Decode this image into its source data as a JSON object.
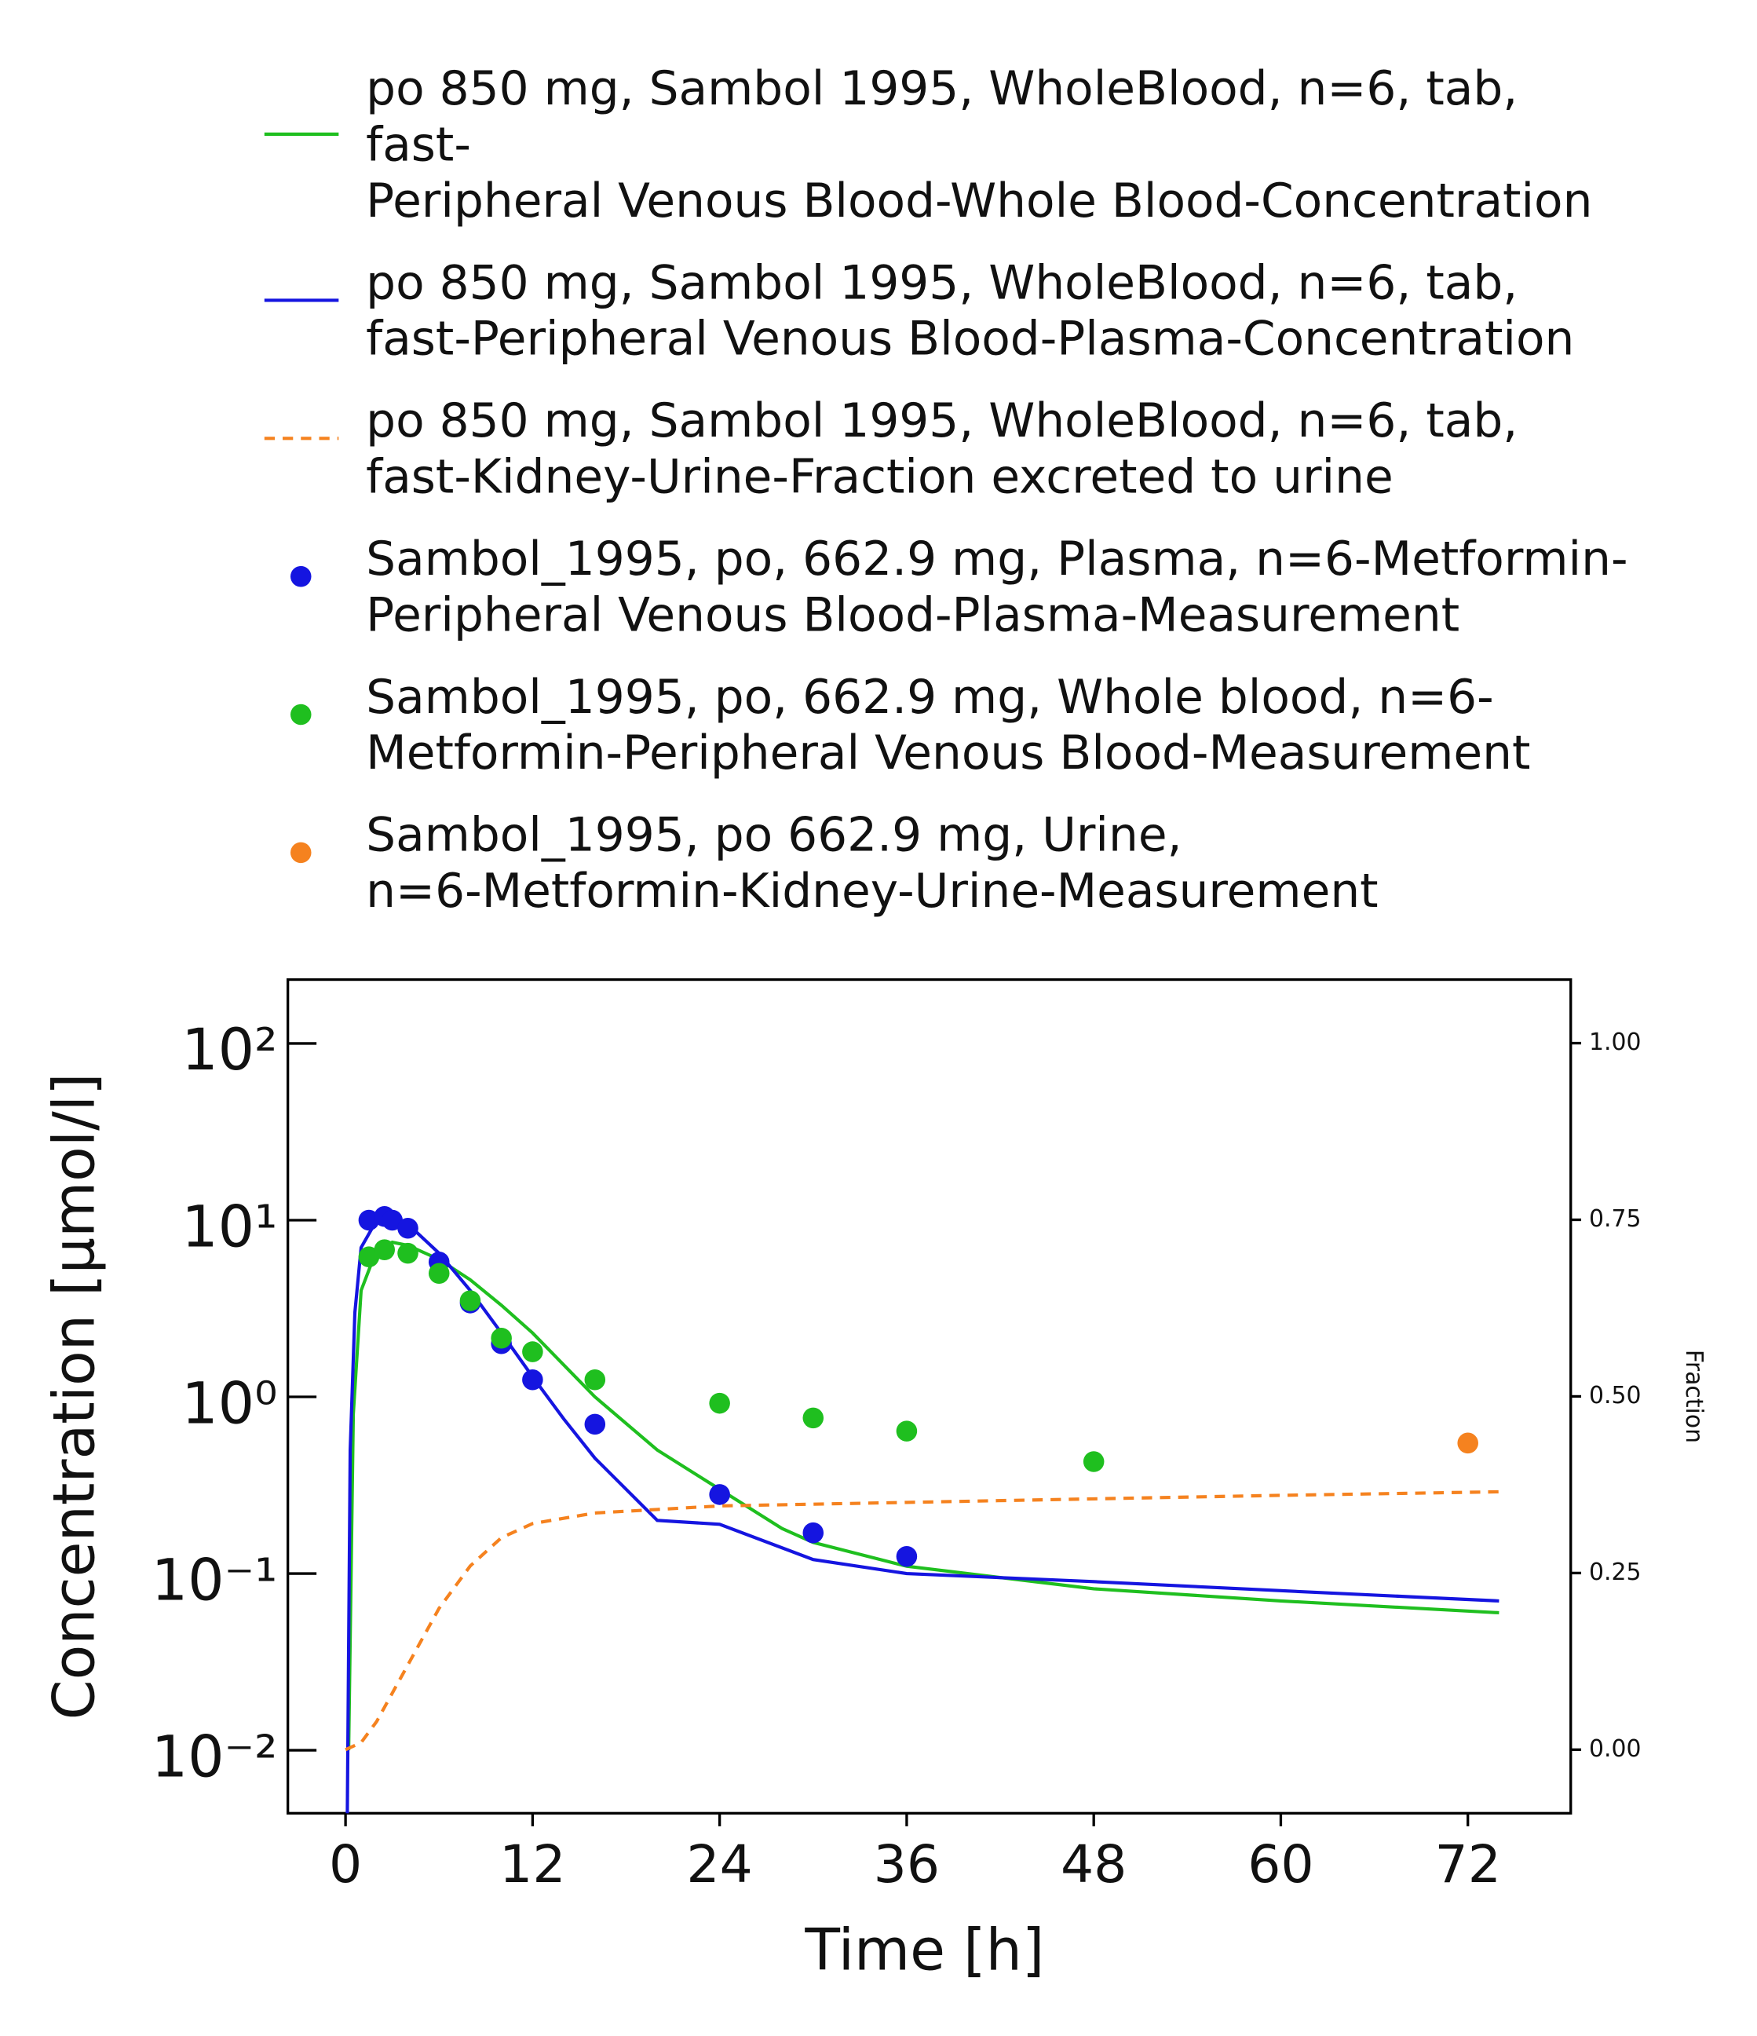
{
  "chart_data": {
    "type": "line",
    "xlabel": "Time [h]",
    "ylabel": "Concentration [µmol/l]",
    "y2label": "Fraction",
    "xlim": [
      -3.7,
      78.6
    ],
    "xticks": [
      0,
      12,
      24,
      36,
      48,
      60,
      72
    ],
    "ylim": [
      0.0044,
      230
    ],
    "ylog": true,
    "yticks": [
      {
        "value": 0.01,
        "label": "10⁻²"
      },
      {
        "value": 0.1,
        "label": "10⁻¹"
      },
      {
        "value": 1,
        "label": "10⁰"
      },
      {
        "value": 10,
        "label": "10¹"
      },
      {
        "value": 100,
        "label": "10²"
      }
    ],
    "y2lim": [
      -0.09,
      1.09
    ],
    "y2ticks": [
      {
        "value": 0,
        "label": "0.00"
      },
      0.25,
      {
        "value": 0.5,
        "label": "0.50"
      },
      0.75,
      {
        "value": 1,
        "label": "1.00"
      }
    ],
    "series": [
      {
        "name": "po 850 mg, Sambol 1995, WholeBlood, n=6, tab,\nfast-\nPeripheral Venous Blood-Whole Blood-Concentration",
        "color": "#1fbf1f",
        "kind": "line",
        "x": [
          0.2,
          0.5,
          1,
          2,
          3,
          4,
          6,
          8,
          10,
          12,
          16,
          20,
          24,
          28,
          30,
          36,
          48,
          60,
          74
        ],
        "values": [
          0.01,
          0.8,
          4,
          6.8,
          7.5,
          7.2,
          6,
          4.6,
          3.3,
          2.3,
          1.0,
          0.5,
          0.3,
          0.18,
          0.15,
          0.11,
          0.082,
          0.07,
          0.06
        ]
      },
      {
        "name": "po 850 mg, Sambol 1995, WholeBlood, n=6, tab,\nfast-Peripheral Venous Blood-Plasma-Concentration",
        "color": "#1515e0",
        "kind": "line",
        "x": [
          0.1,
          0.3,
          0.6,
          1,
          2,
          3,
          4,
          6,
          8,
          10,
          12,
          14,
          16,
          18,
          20,
          24,
          30,
          36,
          48,
          60,
          74
        ],
        "values": [
          0.003,
          0.5,
          3,
          7,
          10,
          10.5,
          9.5,
          6.5,
          4,
          2.3,
          1.3,
          0.75,
          0.45,
          0.3,
          0.2,
          0.19,
          0.12,
          0.1,
          0.09,
          0.08,
          0.07
        ]
      },
      {
        "name": "po 850 mg, Sambol 1995, WholeBlood, n=6, tab,\nfast-Kidney-Urine-Fraction excreted to urine",
        "color": "#f5821f",
        "kind": "line",
        "dashed": true,
        "axis": "y2",
        "x": [
          0,
          1,
          2,
          4,
          6,
          8,
          10,
          12,
          16,
          20,
          24,
          36,
          48,
          60,
          74
        ],
        "values": [
          0,
          0.01,
          0.04,
          0.12,
          0.2,
          0.26,
          0.3,
          0.32,
          0.335,
          0.34,
          0.345,
          0.35,
          0.355,
          0.36,
          0.365
        ]
      },
      {
        "name": "Sambol_1995, po, 662.9 mg, Plasma, n=6-Metformin-\nPeripheral Venous Blood-Plasma-Measurement",
        "color": "#1515e0",
        "kind": "scatter",
        "x": [
          1.5,
          2.5,
          3,
          4,
          6,
          8,
          10,
          12,
          16,
          24,
          30,
          36
        ],
        "values": [
          10,
          10.5,
          10,
          9,
          5.8,
          3.4,
          2.0,
          1.25,
          0.7,
          0.28,
          0.17,
          0.125
        ]
      },
      {
        "name": "Sambol_1995, po, 662.9 mg, Whole blood, n=6-\nMetformin-Peripheral Venous Blood-Measurement",
        "color": "#1fbf1f",
        "kind": "scatter",
        "x": [
          1.5,
          2.5,
          4,
          6,
          8,
          10,
          12,
          16,
          24,
          30,
          36,
          48
        ],
        "values": [
          6.2,
          6.8,
          6.5,
          5.0,
          3.5,
          2.15,
          1.8,
          1.25,
          0.92,
          0.76,
          0.64,
          0.43
        ]
      },
      {
        "name": "Sambol_1995, po 662.9 mg, Urine,\nn=6-Metformin-Kidney-Urine-Measurement",
        "color": "#f5821f",
        "kind": "scatter",
        "axis": "y2",
        "x": [
          72
        ],
        "values": [
          0.434
        ]
      }
    ]
  }
}
